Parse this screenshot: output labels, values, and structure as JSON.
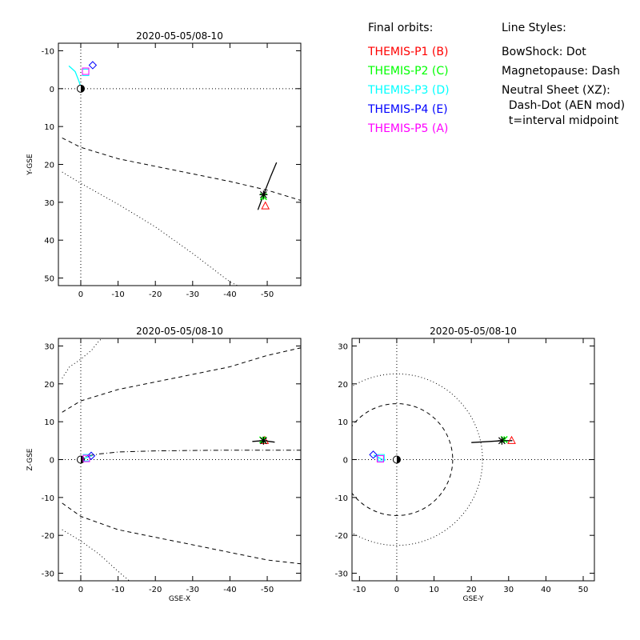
{
  "legend": {
    "orbits_title": "Final orbits:",
    "orbits": [
      {
        "label": "THEMIS-P1 (B)",
        "color": "#ff0000"
      },
      {
        "label": "THEMIS-P2 (C)",
        "color": "#00ff00"
      },
      {
        "label": "THEMIS-P3 (D)",
        "color": "#00ffff"
      },
      {
        "label": "THEMIS-P4 (E)",
        "color": "#0000ff"
      },
      {
        "label": "THEMIS-P5 (A)",
        "color": "#ff00ff"
      }
    ],
    "styles_title": "Line Styles:",
    "styles": [
      "BowShock: Dot",
      "Magnetopause: Dash",
      "Neutral Sheet (XZ):",
      "  Dash-Dot (AEN mod)",
      "  t=interval midpoint"
    ]
  },
  "chart_data": [
    {
      "type": "scatter",
      "title": "2020-05-05/08-10",
      "xlabel": "",
      "ylabel": "Y-GSE",
      "xlim": [
        6,
        -59
      ],
      "ylim": [
        52,
        -12
      ],
      "xticks": [
        0,
        -10,
        -20,
        -30,
        -40,
        -50
      ],
      "xticklabels": [
        "0",
        "-10",
        "-20",
        "-30",
        "-40",
        "-50"
      ],
      "yticks": [
        -10,
        0,
        10,
        20,
        30,
        40,
        50
      ],
      "yticklabels": [
        "-10",
        "0",
        "10",
        "20",
        "30",
        "40",
        "50"
      ],
      "zero_lines": true,
      "curves": [
        {
          "name": "BowShock",
          "style": "dot",
          "points": [
            [
              5,
              22
            ],
            [
              0,
              25
            ],
            [
              -10,
              30.5
            ],
            [
              -20,
              36.5
            ],
            [
              -30,
              43.5
            ],
            [
              -40,
              51
            ],
            [
              -42,
              52
            ]
          ]
        },
        {
          "name": "Magnetopause",
          "style": "dash",
          "points": [
            [
              5,
              13
            ],
            [
              0,
              15.5
            ],
            [
              -10,
              18.5
            ],
            [
              -20,
              20.5
            ],
            [
              -30,
              22.5
            ],
            [
              -40,
              24.5
            ],
            [
              -50,
              26.8
            ],
            [
              -59,
              29.5
            ]
          ]
        },
        {
          "name": "THEMIS-A/D/E orbit",
          "style": "solid",
          "color": "#00ffff",
          "points": [
            [
              0,
              -0.5
            ],
            [
              0.5,
              -2
            ],
            [
              1.5,
              -4.5
            ],
            [
              3.2,
              -6
            ]
          ]
        },
        {
          "name": "THEMIS-B/C orbit",
          "style": "solid",
          "color": "#000000",
          "points": [
            [
              -47.5,
              32
            ],
            [
              -49,
              28
            ],
            [
              -51,
              23
            ],
            [
              -52.5,
              19.5
            ]
          ]
        }
      ],
      "markers": [
        {
          "name": "Earth",
          "symbol": "earth",
          "x": 0,
          "y": 0
        },
        {
          "name": "THEMIS-P1 (B)",
          "symbol": "triangle",
          "color": "#ff0000",
          "x": -49.5,
          "y": 31
        },
        {
          "name": "THEMIS-P2 (C)",
          "symbol": "cross",
          "color": "#00ff00",
          "x": -49,
          "y": 28.5
        },
        {
          "name": "THEMIS-P3 (D)",
          "symbol": "square",
          "color": "#00ffff",
          "x": -1.3,
          "y": -4.3
        },
        {
          "name": "THEMIS-P4 (E)",
          "symbol": "diamond",
          "color": "#0000ff",
          "x": -3.2,
          "y": -6.2
        },
        {
          "name": "THEMIS-P5 (A)",
          "symbol": "square",
          "color": "#ff00ff",
          "x": -1.3,
          "y": -4.6
        },
        {
          "name": "midpoint",
          "symbol": "star",
          "color": "#000000",
          "x": -49,
          "y": 28
        }
      ]
    },
    {
      "type": "scatter",
      "title": "2020-05-05/08-10",
      "xlabel": "GSE-X",
      "ylabel": "Z-GSE",
      "xlim": [
        6,
        -59
      ],
      "ylim": [
        -32,
        32
      ],
      "xticks": [
        0,
        -10,
        -20,
        -30,
        -40,
        -50
      ],
      "xticklabels": [
        "0",
        "-10",
        "-20",
        "-30",
        "-40",
        "-50"
      ],
      "yticks": [
        -30,
        -20,
        -10,
        0,
        10,
        20,
        30
      ],
      "yticklabels": [
        "-30",
        "-20",
        "-10",
        "0",
        "10",
        "20",
        "30"
      ],
      "zero_lines": true,
      "curves": [
        {
          "name": "BowShock upper",
          "style": "dot",
          "points": [
            [
              5,
              21.5
            ],
            [
              3,
              24.5
            ],
            [
              0,
              26.5
            ],
            [
              -3,
              29
            ],
            [
              -5,
              31.5
            ],
            [
              -6,
              32
            ]
          ]
        },
        {
          "name": "BowShock lower",
          "style": "dot",
          "points": [
            [
              5,
              -18.5
            ],
            [
              0,
              -21.5
            ],
            [
              -5,
              -25
            ],
            [
              -10,
              -29.5
            ],
            [
              -13,
              -32
            ]
          ]
        },
        {
          "name": "Magnetopause upper",
          "style": "dash",
          "points": [
            [
              5,
              12.5
            ],
            [
              0,
              15.5
            ],
            [
              -10,
              18.5
            ],
            [
              -20,
              20.5
            ],
            [
              -30,
              22.5
            ],
            [
              -40,
              24.5
            ],
            [
              -50,
              27.5
            ],
            [
              -59,
              29.5
            ]
          ]
        },
        {
          "name": "Magnetopause lower",
          "style": "dash",
          "points": [
            [
              5,
              -11.5
            ],
            [
              0,
              -15
            ],
            [
              -10,
              -18.5
            ],
            [
              -20,
              -20.5
            ],
            [
              -30,
              -22.5
            ],
            [
              -40,
              -24.5
            ],
            [
              -50,
              -26.5
            ],
            [
              -59,
              -27.5
            ]
          ]
        },
        {
          "name": "Neutral Sheet",
          "style": "dashdot",
          "points": [
            [
              0.5,
              0.3
            ],
            [
              -2,
              1
            ],
            [
              -5,
              1.5
            ],
            [
              -10,
              2
            ],
            [
              -20,
              2.3
            ],
            [
              -30,
              2.4
            ],
            [
              -40,
              2.5
            ],
            [
              -50,
              2.5
            ],
            [
              -59,
              2.5
            ]
          ]
        },
        {
          "name": "THEMIS-A/D/E orbit",
          "style": "solid",
          "color": "#00ffff",
          "points": [
            [
              0,
              0
            ],
            [
              -1,
              0.3
            ],
            [
              -2.2,
              0.8
            ],
            [
              -3,
              1
            ]
          ]
        },
        {
          "name": "THEMIS-B/C orbit",
          "style": "solid",
          "color": "#000000",
          "points": [
            [
              -46,
              4.8
            ],
            [
              -49,
              5
            ],
            [
              -52,
              4.6
            ]
          ]
        }
      ],
      "markers": [
        {
          "name": "Earth",
          "symbol": "earth",
          "x": 0,
          "y": 0
        },
        {
          "name": "THEMIS-P1 (B)",
          "symbol": "triangle",
          "color": "#ff0000",
          "x": -49.3,
          "y": 5
        },
        {
          "name": "THEMIS-P2 (C)",
          "symbol": "cross",
          "color": "#00ff00",
          "x": -48.8,
          "y": 5.2
        },
        {
          "name": "THEMIS-P3 (D)",
          "symbol": "square",
          "color": "#00ffff",
          "x": -1.5,
          "y": 0.5
        },
        {
          "name": "THEMIS-P4 (E)",
          "symbol": "diamond",
          "color": "#0000ff",
          "x": -2.8,
          "y": 1
        },
        {
          "name": "THEMIS-P5 (A)",
          "symbol": "square",
          "color": "#ff00ff",
          "x": -1.5,
          "y": 0.3
        },
        {
          "name": "midpoint",
          "symbol": "star",
          "color": "#000000",
          "x": -49,
          "y": 5
        }
      ]
    },
    {
      "type": "scatter",
      "title": "2020-05-05/08-10",
      "xlabel": "GSE-Y",
      "ylabel": "",
      "xlim": [
        -12,
        53
      ],
      "ylim": [
        -32,
        32
      ],
      "xticks": [
        -10,
        0,
        10,
        20,
        30,
        40,
        50
      ],
      "xticklabels": [
        "-10",
        "0",
        "10",
        "20",
        "30",
        "40",
        "50"
      ],
      "yticks": [
        -30,
        -20,
        -10,
        0,
        10,
        20,
        30
      ],
      "yticklabels": [
        "-30",
        "-20",
        "-10",
        "0",
        "10",
        "20",
        "30"
      ],
      "zero_lines": true,
      "circles": [
        {
          "name": "BowShock",
          "style": "dot",
          "radius": 23
        },
        {
          "name": "Magnetopause",
          "style": "dash",
          "radius": 15
        }
      ],
      "curves": [
        {
          "name": "THEMIS-A/D/E orbit",
          "style": "solid",
          "color": "#00ffff",
          "points": [
            [
              -6.2,
              1.2
            ],
            [
              -5,
              0.6
            ],
            [
              -4,
              0.1
            ],
            [
              -3,
              -0.1
            ]
          ]
        },
        {
          "name": "THEMIS-B/C orbit",
          "style": "solid",
          "color": "#000000",
          "points": [
            [
              20,
              4.5
            ],
            [
              25,
              4.8
            ],
            [
              28.5,
              5
            ],
            [
              31,
              5
            ]
          ]
        }
      ],
      "markers": [
        {
          "name": "Earth",
          "symbol": "earth",
          "x": 0,
          "y": 0
        },
        {
          "name": "THEMIS-P1 (B)",
          "symbol": "triangle",
          "color": "#ff0000",
          "x": 30.8,
          "y": 5
        },
        {
          "name": "THEMIS-P2 (C)",
          "symbol": "cross",
          "color": "#00ff00",
          "x": 28.8,
          "y": 5.3
        },
        {
          "name": "THEMIS-P3 (D)",
          "symbol": "square",
          "color": "#00ffff",
          "x": -4.2,
          "y": 0.5
        },
        {
          "name": "THEMIS-P4 (E)",
          "symbol": "diamond",
          "color": "#0000ff",
          "x": -6.3,
          "y": 1.3
        },
        {
          "name": "THEMIS-P5 (A)",
          "symbol": "square",
          "color": "#ff00ff",
          "x": -4.4,
          "y": 0.2
        },
        {
          "name": "midpoint",
          "symbol": "star",
          "color": "#000000",
          "x": 28.2,
          "y": 5
        }
      ]
    }
  ]
}
